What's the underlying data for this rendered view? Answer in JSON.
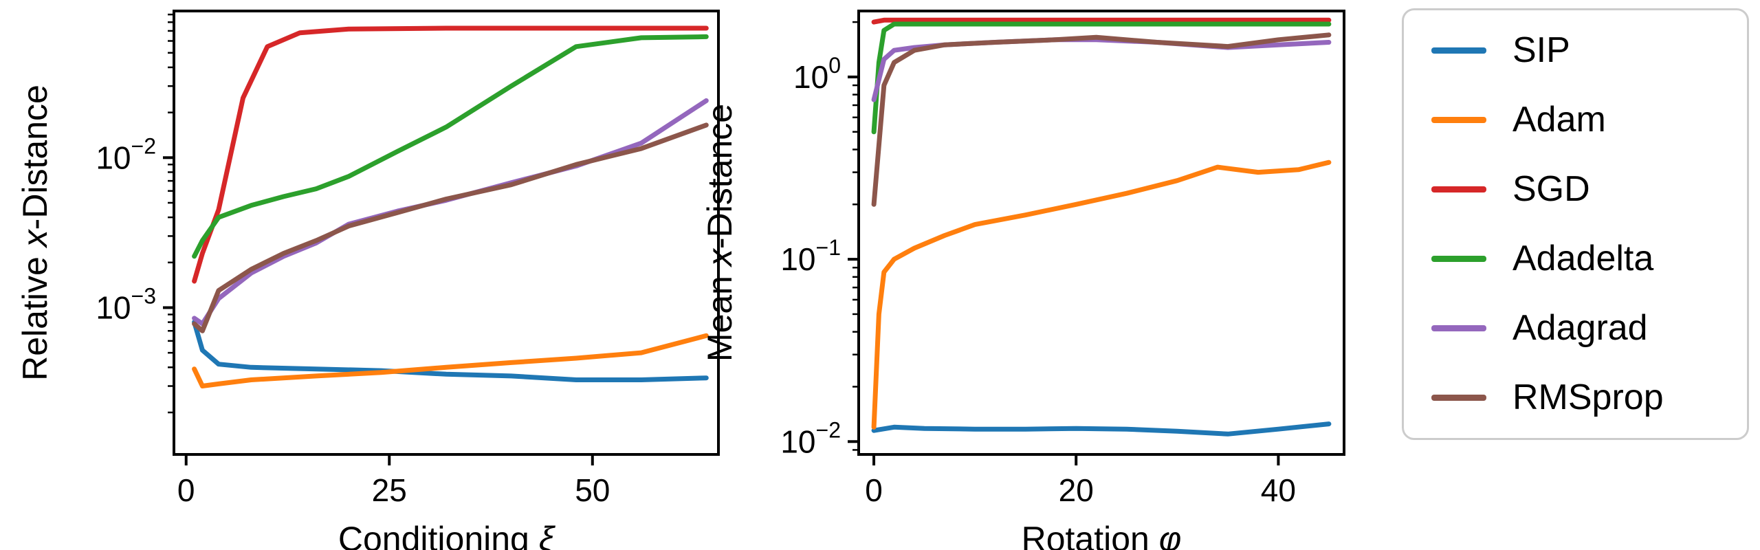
{
  "figure": {
    "background": "#ffffff"
  },
  "legend": {
    "items": [
      {
        "label": "SIP",
        "color": "#1f77b4"
      },
      {
        "label": "Adam",
        "color": "#ff7f0e"
      },
      {
        "label": "SGD",
        "color": "#d62728"
      },
      {
        "label": "Adadelta",
        "color": "#2ca02c"
      },
      {
        "label": "Adagrad",
        "color": "#9467bd"
      },
      {
        "label": "RMSprop",
        "color": "#8c564b"
      }
    ]
  },
  "chart_data": [
    {
      "type": "line",
      "xlabel_parts": [
        {
          "text": "Conditioning ",
          "italic": false
        },
        {
          "text": "ξ",
          "italic": true
        }
      ],
      "ylabel_parts": [
        {
          "text": "Relative ",
          "italic": false
        },
        {
          "text": "x",
          "italic": true
        },
        {
          "text": "-Distance",
          "italic": false
        }
      ],
      "xlim": [
        -1.5,
        65.5
      ],
      "ylog": true,
      "ylim": [
        0.000105,
        0.095
      ],
      "xticks": [
        0,
        25,
        50
      ],
      "ytick_exponents": [
        -2,
        -3
      ],
      "grid": false,
      "legend_position": "outside-right",
      "series": [
        {
          "name": "SIP",
          "color": "#1f77b4",
          "x": [
            1,
            2,
            4,
            8,
            16,
            24,
            32,
            40,
            48,
            56,
            64
          ],
          "y": [
            0.0008,
            0.00052,
            0.00042,
            0.0004,
            0.00039,
            0.00038,
            0.00036,
            0.00035,
            0.00033,
            0.00033,
            0.00034
          ]
        },
        {
          "name": "Adam",
          "color": "#ff7f0e",
          "x": [
            1,
            2,
            4,
            8,
            16,
            24,
            32,
            40,
            48,
            56,
            64
          ],
          "y": [
            0.00039,
            0.0003,
            0.00031,
            0.00033,
            0.00035,
            0.00037,
            0.0004,
            0.00043,
            0.00046,
            0.0005,
            0.00065
          ]
        },
        {
          "name": "SGD",
          "color": "#d62728",
          "x": [
            1,
            2,
            4,
            7,
            10,
            14,
            20,
            32,
            48,
            64
          ],
          "y": [
            0.0015,
            0.0023,
            0.0045,
            0.025,
            0.055,
            0.068,
            0.072,
            0.073,
            0.073,
            0.073
          ]
        },
        {
          "name": "Adadelta",
          "color": "#2ca02c",
          "x": [
            1,
            2,
            4,
            8,
            12,
            16,
            20,
            26,
            32,
            40,
            48,
            56,
            64
          ],
          "y": [
            0.0022,
            0.0028,
            0.004,
            0.0048,
            0.0055,
            0.0062,
            0.0075,
            0.011,
            0.016,
            0.03,
            0.055,
            0.063,
            0.064
          ]
        },
        {
          "name": "Adagrad",
          "color": "#9467bd",
          "x": [
            1,
            2,
            4,
            8,
            12,
            16,
            20,
            26,
            32,
            40,
            48,
            56,
            64
          ],
          "y": [
            0.00085,
            0.00078,
            0.00115,
            0.0017,
            0.0022,
            0.0027,
            0.0036,
            0.0044,
            0.0052,
            0.0068,
            0.0088,
            0.0125,
            0.024
          ]
        },
        {
          "name": "RMSprop",
          "color": "#8c564b",
          "x": [
            1,
            2,
            4,
            8,
            12,
            16,
            20,
            26,
            32,
            40,
            48,
            56,
            64
          ],
          "y": [
            0.00078,
            0.0007,
            0.0013,
            0.0018,
            0.0023,
            0.0028,
            0.0035,
            0.0043,
            0.0053,
            0.0066,
            0.009,
            0.0115,
            0.0165
          ]
        }
      ]
    },
    {
      "type": "line",
      "xlabel_parts": [
        {
          "text": "Rotation ",
          "italic": false
        },
        {
          "text": "φ",
          "italic": true
        }
      ],
      "ylabel_parts": [
        {
          "text": "Mean ",
          "italic": false
        },
        {
          "text": "x",
          "italic": true
        },
        {
          "text": "-Distance",
          "italic": false
        }
      ],
      "xlim": [
        -1.5,
        46.5
      ],
      "ylog": true,
      "ylim": [
        0.0085,
        2.3
      ],
      "xticks": [
        0,
        20,
        40
      ],
      "ytick_exponents": [
        0,
        -1,
        -2
      ],
      "grid": false,
      "legend_position": "outside-right",
      "series": [
        {
          "name": "SIP",
          "color": "#1f77b4",
          "x": [
            0,
            2,
            5,
            10,
            15,
            20,
            25,
            30,
            35,
            40,
            45
          ],
          "y": [
            0.0115,
            0.012,
            0.0118,
            0.0117,
            0.0117,
            0.0118,
            0.0117,
            0.0114,
            0.011,
            0.0117,
            0.0125
          ]
        },
        {
          "name": "Adam",
          "color": "#ff7f0e",
          "x": [
            0,
            0.5,
            1,
            2,
            4,
            7,
            10,
            15,
            20,
            25,
            30,
            34,
            38,
            42,
            45
          ],
          "y": [
            0.012,
            0.05,
            0.085,
            0.1,
            0.115,
            0.135,
            0.155,
            0.175,
            0.2,
            0.23,
            0.27,
            0.32,
            0.3,
            0.31,
            0.34
          ]
        },
        {
          "name": "SGD",
          "color": "#d62728",
          "x": [
            0,
            1,
            5,
            10,
            20,
            30,
            40,
            45
          ],
          "y": [
            2.0,
            2.05,
            2.05,
            2.05,
            2.05,
            2.05,
            2.05,
            2.05
          ]
        },
        {
          "name": "Adadelta",
          "color": "#2ca02c",
          "x": [
            0,
            0.5,
            1,
            2,
            5,
            10,
            20,
            30,
            40,
            45
          ],
          "y": [
            0.5,
            1.2,
            1.8,
            1.95,
            1.95,
            1.95,
            1.95,
            1.95,
            1.95,
            1.95
          ]
        },
        {
          "name": "Adagrad",
          "color": "#9467bd",
          "x": [
            0,
            1,
            2,
            4,
            7,
            12,
            18,
            22,
            28,
            35,
            40,
            45
          ],
          "y": [
            0.75,
            1.25,
            1.4,
            1.45,
            1.5,
            1.55,
            1.6,
            1.6,
            1.55,
            1.45,
            1.5,
            1.55
          ]
        },
        {
          "name": "RMSprop",
          "color": "#8c564b",
          "x": [
            0,
            1,
            2,
            4,
            7,
            12,
            18,
            22,
            28,
            35,
            40,
            45
          ],
          "y": [
            0.2,
            0.9,
            1.2,
            1.4,
            1.5,
            1.55,
            1.6,
            1.65,
            1.55,
            1.47,
            1.6,
            1.7
          ]
        }
      ]
    }
  ]
}
